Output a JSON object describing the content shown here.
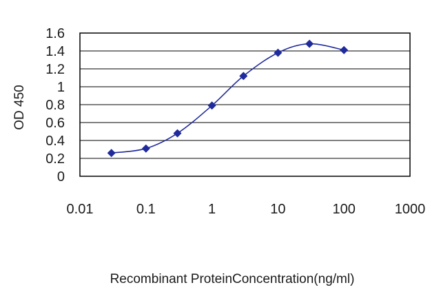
{
  "chart_data": {
    "type": "line",
    "title": "",
    "xlabel": "Recombinant ProteinConcentration(ng/ml)",
    "ylabel": "OD 450",
    "x_scale": "log",
    "xlim": [
      0.01,
      1000
    ],
    "ylim": [
      0,
      1.6
    ],
    "x_ticks": [
      "0.01",
      "0.1",
      "1",
      "10",
      "100",
      "1000"
    ],
    "y_ticks": [
      "0",
      "0.2",
      "0.4",
      "0.6",
      "0.8",
      "1",
      "1.2",
      "1.4",
      "1.6"
    ],
    "grid": true,
    "legend": "none",
    "series": [
      {
        "x": [
          0.03,
          0.1,
          0.3,
          1,
          3,
          10,
          30,
          100
        ],
        "y": [
          0.26,
          0.31,
          0.48,
          0.79,
          1.12,
          1.38,
          1.48,
          1.41
        ],
        "color": "#1f2a9c",
        "marker": "diamond"
      }
    ],
    "plot_background": "#ffffff",
    "frame_color": "#000000"
  }
}
